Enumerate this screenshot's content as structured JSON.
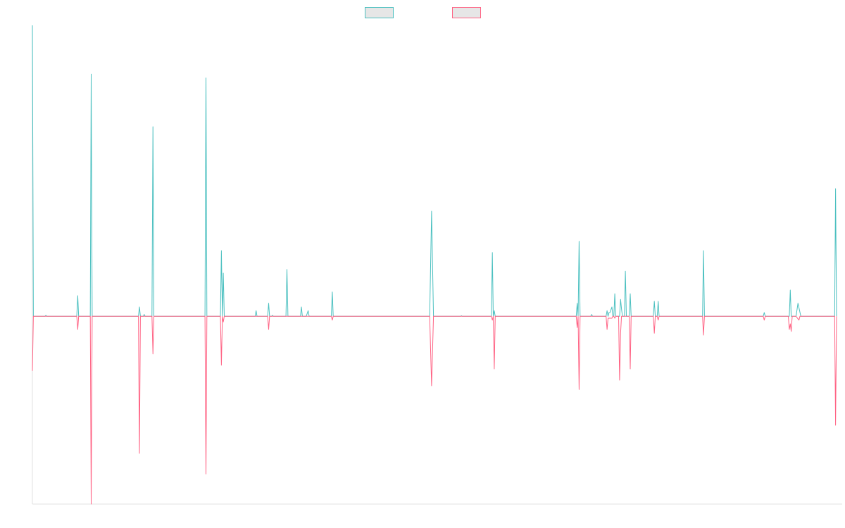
{
  "chart_data": {
    "type": "line",
    "title": "",
    "xlabel": "",
    "ylabel": "",
    "legend": {
      "position": "top",
      "entries": [
        {
          "label": "",
          "color": "#4BC0C0",
          "fill": "#E6E6E6"
        },
        {
          "label": "",
          "color": "#FF6384",
          "fill": "#E6E6E6"
        }
      ]
    },
    "grid": false,
    "ylim": [
      -100,
      155
    ],
    "series": [
      {
        "name": "",
        "color": "#4BC0C0",
        "points": [
          [
            0.0,
            155
          ],
          [
            0.5,
            0
          ],
          [
            6.5,
            0
          ],
          [
            7.0,
            0.5
          ],
          [
            7.5,
            0
          ],
          [
            23.0,
            0
          ],
          [
            23.5,
            11
          ],
          [
            24.0,
            0
          ],
          [
            30.0,
            0
          ],
          [
            30.5,
            129
          ],
          [
            31.0,
            0
          ],
          [
            55.0,
            0
          ],
          [
            55.5,
            5
          ],
          [
            56.0,
            0
          ],
          [
            57.5,
            0
          ],
          [
            58.0,
            1
          ],
          [
            58.5,
            0
          ],
          [
            62.0,
            0
          ],
          [
            62.5,
            101
          ],
          [
            63.0,
            0
          ],
          [
            89.5,
            0
          ],
          [
            90.0,
            127
          ],
          [
            90.5,
            0
          ],
          [
            97.5,
            0
          ],
          [
            98.0,
            35
          ],
          [
            98.5,
            0
          ],
          [
            99.0,
            23
          ],
          [
            99.5,
            0
          ],
          [
            115.5,
            0
          ],
          [
            116.0,
            3
          ],
          [
            116.5,
            0
          ],
          [
            122.0,
            0
          ],
          [
            122.5,
            7
          ],
          [
            123.0,
            0
          ],
          [
            124.0,
            0
          ],
          [
            124.5,
            0.5
          ],
          [
            125.0,
            0
          ],
          [
            131.5,
            0
          ],
          [
            132.0,
            25
          ],
          [
            132.5,
            0
          ],
          [
            139.0,
            0
          ],
          [
            139.5,
            5
          ],
          [
            140.0,
            0
          ],
          [
            142.0,
            0
          ],
          [
            143.0,
            3
          ],
          [
            143.5,
            0
          ],
          [
            155.0,
            0
          ],
          [
            155.5,
            13
          ],
          [
            156.0,
            0
          ],
          [
            206.0,
            0
          ],
          [
            207.0,
            56
          ],
          [
            208.0,
            0
          ],
          [
            222.0,
            0
          ],
          [
            222.5,
            0.3
          ],
          [
            223.0,
            0
          ],
          [
            238.0,
            0
          ],
          [
            238.5,
            34
          ],
          [
            239.0,
            0
          ],
          [
            239.5,
            3
          ],
          [
            240.0,
            0
          ],
          [
            282.0,
            0
          ],
          [
            282.5,
            7
          ],
          [
            283.0,
            0
          ],
          [
            283.5,
            40
          ],
          [
            284.0,
            0
          ],
          [
            289.5,
            0
          ],
          [
            290.0,
            1
          ],
          [
            290.5,
            0
          ],
          [
            297.5,
            0
          ],
          [
            298.0,
            3
          ],
          [
            298.5,
            0
          ],
          [
            299.0,
            2
          ],
          [
            299.5,
            2
          ],
          [
            300.5,
            5
          ],
          [
            301.0,
            0
          ],
          [
            301.5,
            0
          ],
          [
            302.0,
            12
          ],
          [
            302.5,
            0
          ],
          [
            304.5,
            0
          ],
          [
            305.0,
            9
          ],
          [
            305.5,
            4
          ],
          [
            306.0,
            0
          ],
          [
            307.0,
            0
          ],
          [
            307.5,
            24
          ],
          [
            308.0,
            0
          ],
          [
            309.5,
            0
          ],
          [
            310.0,
            12
          ],
          [
            310.5,
            0
          ],
          [
            322.0,
            0
          ],
          [
            322.5,
            8
          ],
          [
            323.0,
            0
          ],
          [
            324.0,
            0
          ],
          [
            324.5,
            8
          ],
          [
            325.0,
            0
          ],
          [
            347.5,
            0
          ],
          [
            348.0,
            35
          ],
          [
            348.5,
            0
          ],
          [
            379.0,
            0
          ],
          [
            379.5,
            2
          ],
          [
            380.0,
            0
          ],
          [
            392.5,
            0
          ],
          [
            393.0,
            14
          ],
          [
            393.5,
            0
          ],
          [
            396.0,
            0
          ],
          [
            397.0,
            7
          ],
          [
            398.5,
            0
          ],
          [
            416.0,
            0
          ],
          [
            416.5,
            68
          ],
          [
            417.0,
            0
          ]
        ]
      },
      {
        "name": "",
        "color": "#FF6384",
        "points": [
          [
            0.0,
            -29
          ],
          [
            0.5,
            0
          ],
          [
            23.0,
            0
          ],
          [
            23.5,
            -7
          ],
          [
            24.0,
            0
          ],
          [
            30.0,
            0
          ],
          [
            30.5,
            -100
          ],
          [
            31.0,
            0
          ],
          [
            55.0,
            0
          ],
          [
            55.5,
            -73
          ],
          [
            56.0,
            0
          ],
          [
            62.0,
            0
          ],
          [
            62.5,
            -20
          ],
          [
            63.0,
            0
          ],
          [
            89.5,
            0
          ],
          [
            90.0,
            -84
          ],
          [
            90.5,
            0
          ],
          [
            97.5,
            0
          ],
          [
            98.0,
            -26
          ],
          [
            98.5,
            0
          ],
          [
            99.0,
            -3
          ],
          [
            99.5,
            0
          ],
          [
            122.0,
            0
          ],
          [
            122.5,
            -7
          ],
          [
            123.0,
            0
          ],
          [
            155.0,
            0
          ],
          [
            155.5,
            -2
          ],
          [
            156.0,
            0
          ],
          [
            206.0,
            0
          ],
          [
            207.0,
            -37
          ],
          [
            208.0,
            0
          ],
          [
            238.0,
            0
          ],
          [
            238.5,
            -2
          ],
          [
            239.0,
            0
          ],
          [
            239.5,
            -28
          ],
          [
            240.0,
            0
          ],
          [
            282.0,
            0
          ],
          [
            282.5,
            -6
          ],
          [
            283.0,
            0
          ],
          [
            283.5,
            -39
          ],
          [
            284.0,
            0
          ],
          [
            297.5,
            0
          ],
          [
            298.0,
            -7
          ],
          [
            298.5,
            -1
          ],
          [
            300.5,
            -1
          ],
          [
            301.0,
            0
          ],
          [
            301.5,
            0
          ],
          [
            302.0,
            -1
          ],
          [
            302.5,
            0
          ],
          [
            304.0,
            0
          ],
          [
            304.5,
            -34
          ],
          [
            305.0,
            -9
          ],
          [
            305.5,
            0
          ],
          [
            309.5,
            0
          ],
          [
            310.0,
            -28
          ],
          [
            310.5,
            0
          ],
          [
            322.0,
            0
          ],
          [
            322.5,
            -9
          ],
          [
            323.0,
            0
          ],
          [
            324.0,
            0
          ],
          [
            324.5,
            -2
          ],
          [
            325.0,
            0
          ],
          [
            347.5,
            0
          ],
          [
            348.0,
            -10
          ],
          [
            348.5,
            0
          ],
          [
            379.0,
            0
          ],
          [
            379.5,
            -2
          ],
          [
            380.0,
            0
          ],
          [
            392.0,
            0
          ],
          [
            392.5,
            -7
          ],
          [
            393.0,
            -4
          ],
          [
            393.5,
            -8
          ],
          [
            394.0,
            0
          ],
          [
            396.0,
            0
          ],
          [
            397.5,
            -2
          ],
          [
            398.0,
            0
          ],
          [
            416.0,
            0
          ],
          [
            416.5,
            -58
          ],
          [
            417.0,
            0
          ]
        ]
      }
    ]
  }
}
